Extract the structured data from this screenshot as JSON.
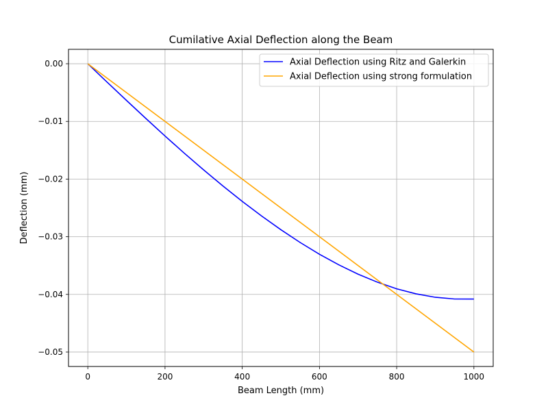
{
  "chart_data": {
    "type": "line",
    "title": "Cumilative Axial Deflection along the Beam",
    "xlabel": "Beam Length (mm)",
    "ylabel": "Deflection (mm)",
    "xlim": [
      -50,
      1050
    ],
    "ylim": [
      -0.0525,
      0.0025
    ],
    "xticks": [
      0,
      200,
      400,
      600,
      800,
      1000
    ],
    "xtick_labels": [
      "0",
      "200",
      "400",
      "600",
      "800",
      "1000"
    ],
    "yticks": [
      0.0,
      -0.01,
      -0.02,
      -0.03,
      -0.04,
      -0.05
    ],
    "ytick_labels": [
      "0.00",
      "−0.01",
      "−0.02",
      "−0.03",
      "−0.04",
      "−0.05"
    ],
    "grid": true,
    "legend_position": "top-right",
    "series": [
      {
        "name": "Axial Deflection using Ritz and Galerkin",
        "color": "#0000ff",
        "x": [
          0,
          50,
          100,
          150,
          200,
          250,
          300,
          350,
          400,
          450,
          500,
          550,
          600,
          650,
          700,
          750,
          800,
          850,
          900,
          950,
          1000
        ],
        "y": [
          0.0,
          -0.00319,
          -0.00635,
          -0.00947,
          -0.01253,
          -0.01552,
          -0.01841,
          -0.0212,
          -0.02387,
          -0.0264,
          -0.02878,
          -0.031,
          -0.03304,
          -0.03487,
          -0.03649,
          -0.03788,
          -0.03903,
          -0.0399,
          -0.0405,
          -0.0408,
          -0.04081
        ]
      },
      {
        "name": "Axial Deflection using strong formulation",
        "color": "#ffa500",
        "x": [
          0,
          1000
        ],
        "y": [
          0.0,
          -0.05
        ]
      }
    ]
  }
}
